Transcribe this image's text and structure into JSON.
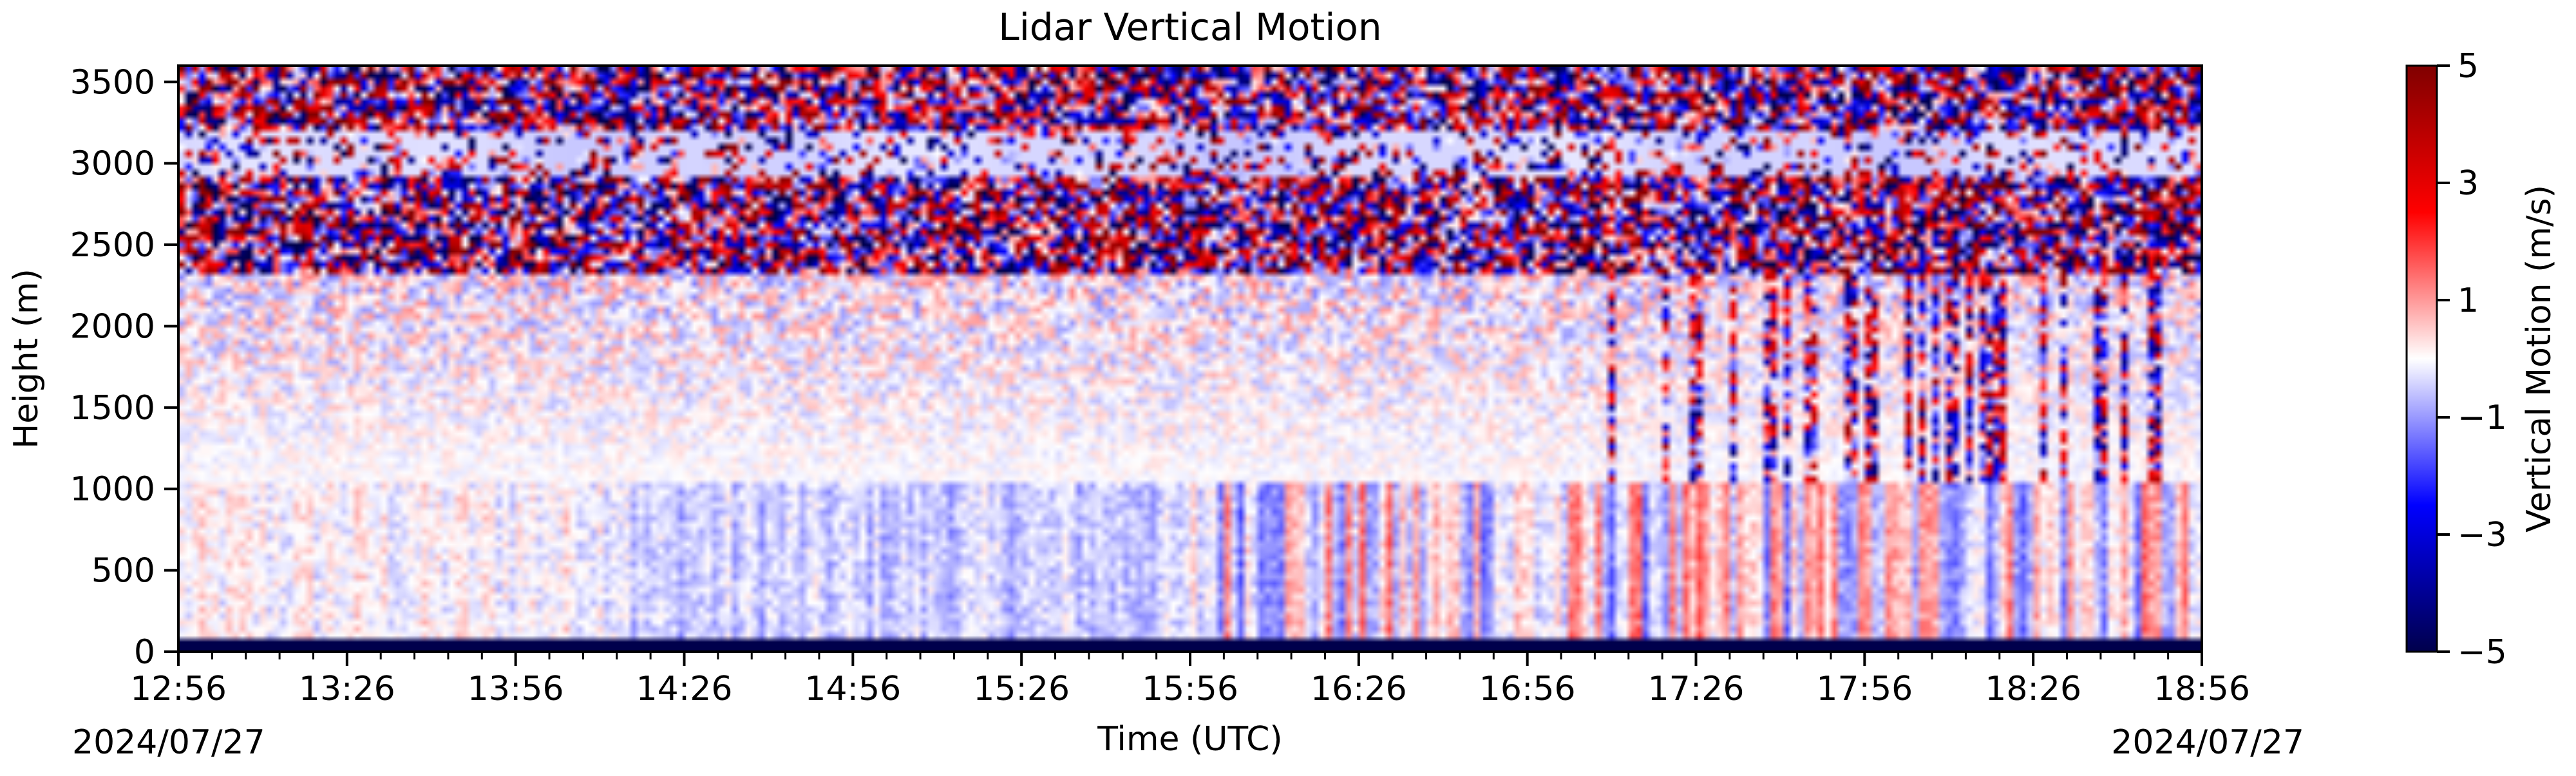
{
  "chart_data": {
    "type": "heatmap",
    "title": "Lidar Vertical Motion",
    "xlabel": "Time (UTC)",
    "ylabel": "Height (m)",
    "date_left": "2024/07/27",
    "date_right": "2024/07/27",
    "x_ticks": [
      "12:56",
      "13:26",
      "13:56",
      "14:26",
      "14:56",
      "15:26",
      "15:56",
      "16:26",
      "16:56",
      "17:26",
      "17:56",
      "18:26",
      "18:56"
    ],
    "x_range_minutes": [
      0,
      360
    ],
    "y_ticks": [
      0,
      500,
      1000,
      1500,
      2000,
      2500,
      3000,
      3500
    ],
    "ylim": [
      0,
      3600
    ],
    "colorbar": {
      "label": "Vertical Motion (m/s)",
      "range": [
        -5,
        5
      ],
      "ticks": [
        "5",
        "3",
        "1",
        "−1",
        "−3",
        "−5"
      ],
      "tick_values": [
        5,
        3,
        1,
        -1,
        -3,
        -5
      ],
      "colormap": "seismic",
      "colors": [
        "#00004c",
        "#0000ff",
        "#ffffff",
        "#ff0000",
        "#800000"
      ]
    }
  }
}
